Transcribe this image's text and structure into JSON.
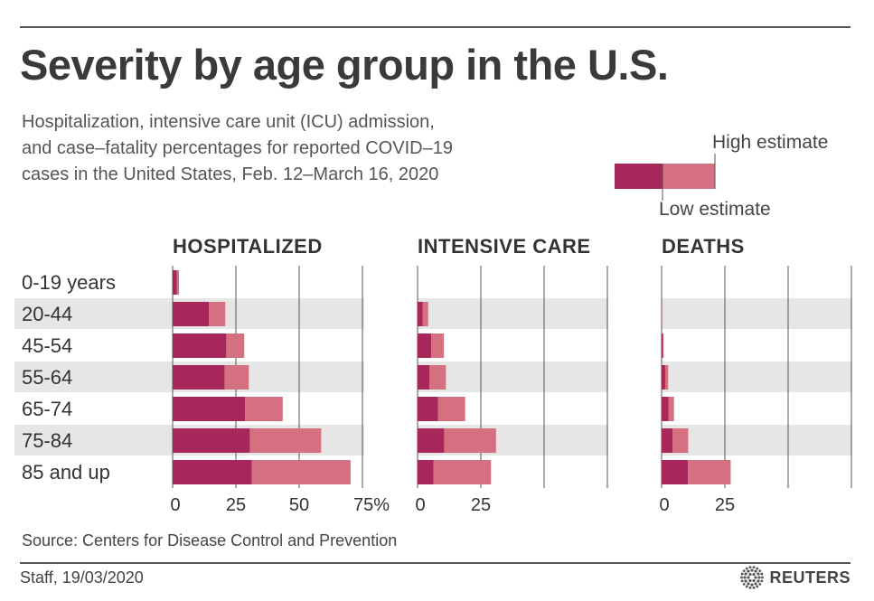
{
  "header": {
    "title": "Severity by age group in the U.S.",
    "subtitle_lines": [
      "Hospitalization, intensive care unit (ICU) admission,",
      "and case–fatality percentages for reported COVID–19",
      "cases in the United States, Feb. 12–March 16, 2020"
    ]
  },
  "legend": {
    "high": "High estimate",
    "low": "Low estimate"
  },
  "colors": {
    "low": "#a8275a",
    "high": "#d4707f",
    "band": "#e6e6e6",
    "grid": "#555555",
    "text": "#333333"
  },
  "chart_data": {
    "type": "bar",
    "orientation": "horizontal",
    "stacked_range": true,
    "categories": [
      "0-19 years",
      "20-44",
      "45-54",
      "55-64",
      "65-74",
      "75-84",
      "85 and up"
    ],
    "panels": [
      {
        "title": "HOSPITALIZED",
        "ticks": [
          0,
          25,
          50,
          75
        ],
        "tick_labels": [
          "0",
          "25",
          "50",
          "75%"
        ],
        "xlim": [
          0,
          75
        ],
        "series": [
          {
            "name": "Low estimate",
            "values": [
              1.6,
              14.3,
              21.2,
              20.5,
              28.6,
              30.5,
              31.3
            ]
          },
          {
            "name": "High estimate",
            "values": [
              2.5,
              20.8,
              28.3,
              30.1,
              43.5,
              58.7,
              70.3
            ]
          }
        ]
      },
      {
        "title": "INTENSIVE CARE",
        "ticks": [
          0,
          25
        ],
        "tick_labels": [
          "0",
          "25"
        ],
        "xlim": [
          0,
          75
        ],
        "series": [
          {
            "name": "Low estimate",
            "values": [
              0,
              2.0,
              5.4,
              4.7,
              8.1,
              10.5,
              6.3
            ]
          },
          {
            "name": "High estimate",
            "values": [
              0,
              4.2,
              10.4,
              11.2,
              18.8,
              31.0,
              29.0
            ]
          }
        ]
      },
      {
        "title": "DEATHS",
        "ticks": [
          0,
          25
        ],
        "tick_labels": [
          "0",
          "25"
        ],
        "xlim": [
          0,
          75
        ],
        "series": [
          {
            "name": "Low estimate",
            "values": [
              0,
              0.1,
              0.5,
              1.4,
              2.7,
              4.3,
              10.4
            ]
          },
          {
            "name": "High estimate",
            "values": [
              0,
              0.2,
              0.8,
              2.6,
              4.9,
              10.5,
              27.3
            ]
          }
        ]
      }
    ]
  },
  "footer": {
    "source": "Source: Centers for Disease Control and Prevention",
    "credit": "Staff,  19/03/2020",
    "brand": "REUTERS"
  }
}
